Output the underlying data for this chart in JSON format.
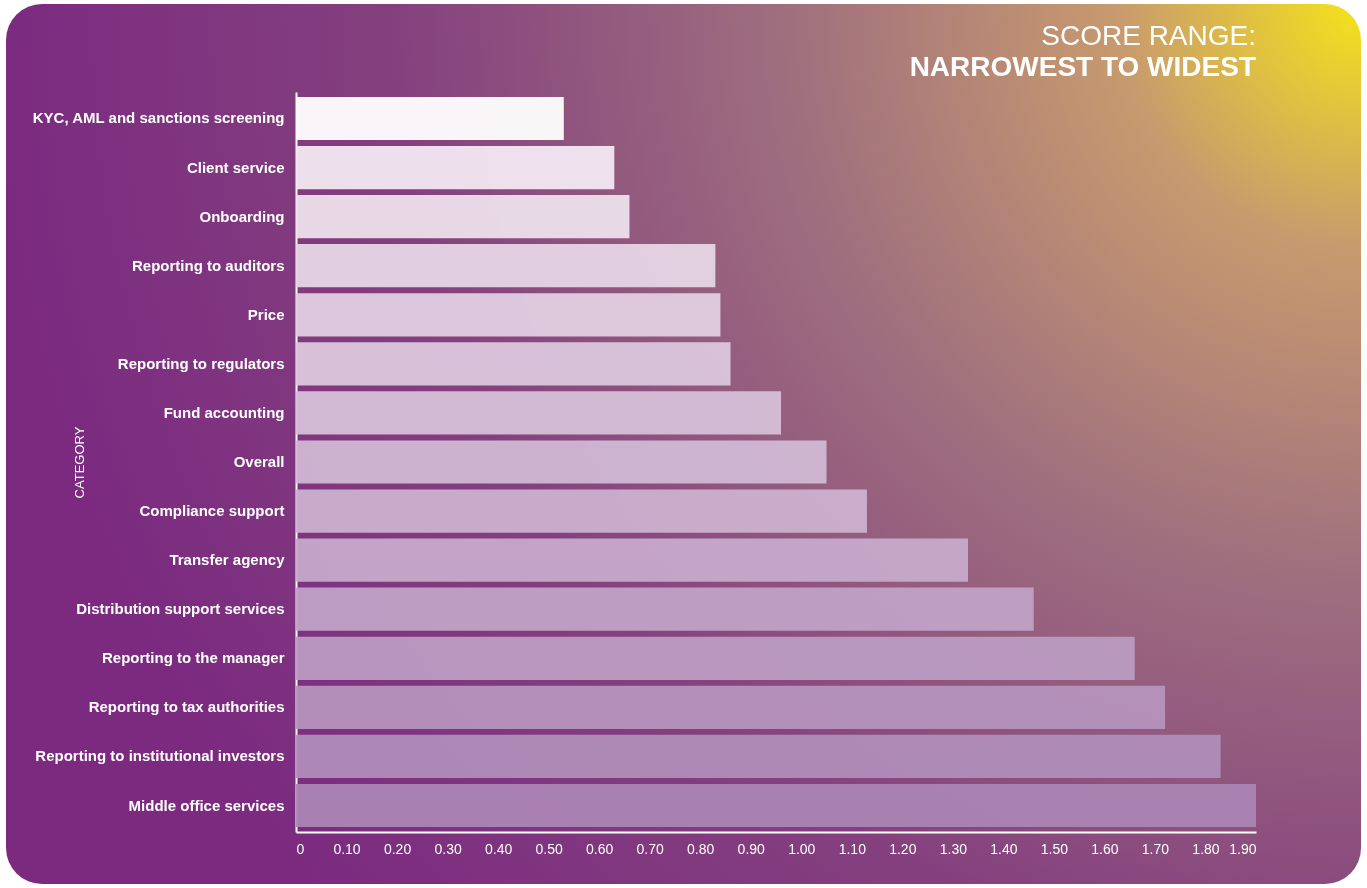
{
  "chart_data": {
    "type": "bar",
    "orientation": "horizontal",
    "title": "SCORE RANGE:",
    "subtitle": "NARROWEST TO WIDEST",
    "ylabel": "CATEGORY",
    "categories": [
      "KYC, AML and sanctions screening",
      "Client service",
      "Onboarding",
      "Reporting to auditors",
      "Price",
      "Reporting to regulators",
      "Fund accounting",
      "Overall",
      "Compliance support",
      "Transfer agency",
      "Distribution support services",
      "Reporting to the manager",
      "Reporting to tax authorities",
      "Reporting to institutional investors",
      "Middle office services"
    ],
    "values": [
      0.53,
      0.63,
      0.66,
      0.83,
      0.84,
      0.86,
      0.96,
      1.05,
      1.13,
      1.33,
      1.46,
      1.66,
      1.72,
      1.83,
      1.9
    ],
    "colors": [
      "#ffffff",
      "#f3e8f2",
      "#ede0ec",
      "#e6d6e7",
      "#e1cfe2",
      "#dbc7dd",
      "#d5bfd8",
      "#d0b8d4",
      "#cbb1cf",
      "#c6aacb",
      "#c0a2c6",
      "#bb9bc2",
      "#b594bd",
      "#b08db9",
      "#ab85b4"
    ],
    "xlim": [
      0,
      1.9
    ],
    "xticks": [
      0,
      {
        "value": 0.1,
        "label": "0.10"
      },
      {
        "value": 0.2,
        "label": "0.20"
      },
      {
        "value": 0.3,
        "label": "0.30"
      },
      {
        "value": 0.4,
        "label": "0.40"
      },
      {
        "value": 0.5,
        "label": "0.50"
      },
      {
        "value": 0.6,
        "label": "0.60"
      },
      {
        "value": 0.7,
        "label": "0.70"
      },
      {
        "value": 0.8,
        "label": "0.80"
      },
      {
        "value": 0.9,
        "label": "0.90"
      },
      {
        "value": 1.0,
        "label": "1.00"
      },
      {
        "value": 1.1,
        "label": "1.10"
      },
      {
        "value": 1.2,
        "label": "1.20"
      },
      {
        "value": 1.3,
        "label": "1.30"
      },
      {
        "value": 1.4,
        "label": "1.40"
      },
      {
        "value": 1.5,
        "label": "1.50"
      },
      {
        "value": 1.6,
        "label": "1.60"
      },
      {
        "value": 1.7,
        "label": "1.70"
      },
      {
        "value": 1.8,
        "label": "1.80"
      },
      {
        "value": 1.9,
        "label": "1.90"
      }
    ]
  }
}
